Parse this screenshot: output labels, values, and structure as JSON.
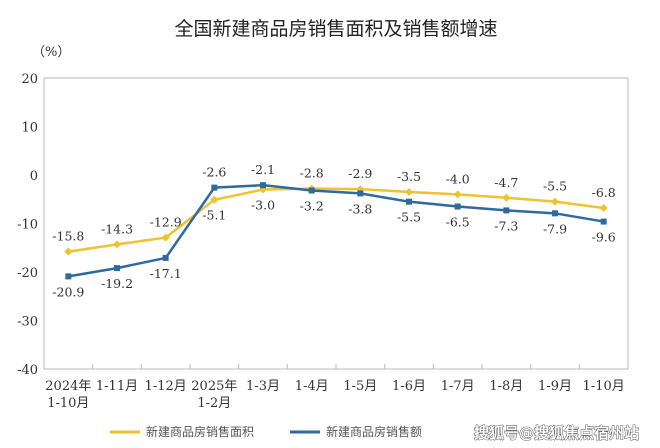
{
  "chart_data": {
    "type": "line",
    "title": "全国新建商品房销售面积及销售额增速",
    "ylabel": "（%）",
    "ylim": [
      -40,
      20
    ],
    "yticks": [
      20,
      10,
      0,
      -10,
      -20,
      -30,
      -40
    ],
    "categories": [
      [
        "2024年",
        "1-10月"
      ],
      [
        "1-11月"
      ],
      [
        "1-12月"
      ],
      [
        "2025年",
        "1-2月"
      ],
      [
        "1-3月"
      ],
      [
        "1-4月"
      ],
      [
        "1-5月"
      ],
      [
        "1-6月"
      ],
      [
        "1-7月"
      ],
      [
        "1-8月"
      ],
      [
        "1-9月"
      ],
      [
        "1-10月"
      ]
    ],
    "legend_position": "bottom",
    "grid": false,
    "series": [
      {
        "name": "新建商品房销售面积",
        "color": "#f0c130",
        "marker": "diamond",
        "values": [
          -15.8,
          -14.3,
          -12.9,
          -5.1,
          -3.0,
          -2.8,
          -2.9,
          -3.5,
          -4.0,
          -4.7,
          -5.5,
          -6.8
        ],
        "label_pos": [
          "above",
          "above",
          "above",
          "below",
          "below",
          "above",
          "above",
          "above",
          "above",
          "above",
          "above",
          "above"
        ]
      },
      {
        "name": "新建商品房销售额",
        "color": "#2e6aa0",
        "marker": "square",
        "values": [
          -20.9,
          -19.2,
          -17.1,
          -2.6,
          -2.1,
          -3.2,
          -3.8,
          -5.5,
          -6.5,
          -7.3,
          -7.9,
          -9.6
        ],
        "label_pos": [
          "below",
          "below",
          "below",
          "above",
          "above",
          "below",
          "below",
          "below",
          "below",
          "below",
          "below",
          "below"
        ]
      }
    ]
  },
  "watermark": "搜狐号@搜狐焦点宿州站"
}
